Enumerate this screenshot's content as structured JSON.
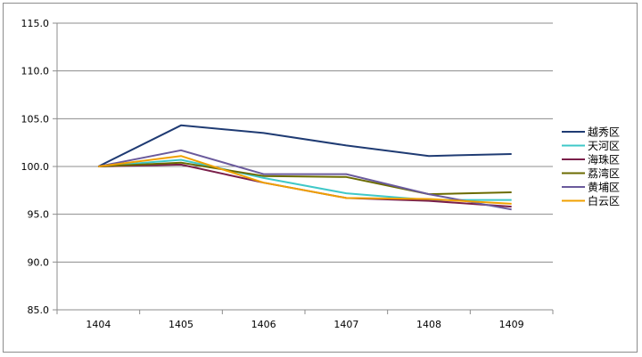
{
  "chart_data": {
    "type": "line",
    "x": [
      "1404",
      "1405",
      "1406",
      "1407",
      "1408",
      "1409"
    ],
    "ylim": [
      85.0,
      115.0
    ],
    "yticks": [
      "85.0",
      "90.0",
      "95.0",
      "100.0",
      "105.0",
      "110.0",
      "115.0"
    ],
    "grid": true,
    "legend_position": "right",
    "series": [
      {
        "name": "越秀区",
        "color": "#1f3b73",
        "values": [
          100.0,
          104.3,
          103.5,
          102.2,
          101.1,
          101.3
        ]
      },
      {
        "name": "天河区",
        "color": "#3fc8c8",
        "values": [
          100.0,
          100.7,
          98.8,
          97.2,
          96.5,
          96.5
        ]
      },
      {
        "name": "海珠区",
        "color": "#7a1f4a",
        "values": [
          100.0,
          100.2,
          98.3,
          96.7,
          96.4,
          95.8
        ]
      },
      {
        "name": "荔湾区",
        "color": "#6b6b00",
        "values": [
          100.0,
          100.4,
          99.0,
          98.9,
          97.1,
          97.3
        ]
      },
      {
        "name": "黄埔区",
        "color": "#6a5a9c",
        "values": [
          100.0,
          101.7,
          99.2,
          99.2,
          97.1,
          95.5
        ]
      },
      {
        "name": "白云区",
        "color": "#f0a000",
        "values": [
          100.0,
          101.1,
          98.3,
          96.7,
          96.6,
          96.1
        ]
      }
    ]
  }
}
